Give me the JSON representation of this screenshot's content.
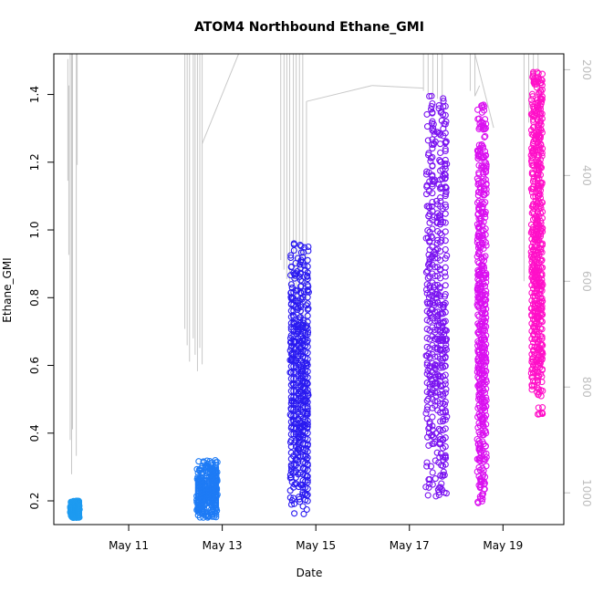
{
  "chart_data": {
    "type": "scatter",
    "title": "ATOM4 Northbound Ethane_GMI",
    "xlabel": "Date",
    "ylabel": "Ethane_GMI",
    "x_ticks": [
      "May 11",
      "May 13",
      "May 15",
      "May 17",
      "May 19"
    ],
    "x_tick_days": [
      11,
      13,
      15,
      17,
      19
    ],
    "xlim_days": [
      9.4,
      20.3
    ],
    "y_ticks": [
      "0.2",
      "0.4",
      "0.6",
      "0.8",
      "1.0",
      "1.2",
      "1.4"
    ],
    "ylim": [
      0.13,
      1.52
    ],
    "y2_ticks": [
      "200",
      "400",
      "600",
      "800",
      "1000"
    ],
    "y2_note": "secondary axis (pressure-like, inverted)",
    "y2lim": [
      1060,
      170
    ],
    "grid": false,
    "series": [
      {
        "color": "#1E9BF0",
        "day_range": [
          9.75,
          9.95
        ],
        "y_range": [
          0.15,
          0.2
        ]
      },
      {
        "color": "#1E7BF5",
        "day_range": [
          12.45,
          12.9
        ],
        "y_range": [
          0.15,
          0.32
        ]
      },
      {
        "color": "#2A1AF0",
        "day_range": [
          14.45,
          14.85
        ],
        "y_range": [
          0.16,
          0.98
        ]
      },
      {
        "color": "#7A12F0",
        "day_range": [
          17.35,
          17.8
        ],
        "y_range": [
          0.21,
          1.4
        ]
      },
      {
        "color": "#DA10F0",
        "day_range": [
          18.45,
          18.65
        ],
        "y_range": [
          0.19,
          1.37
        ]
      },
      {
        "color": "#FF10C8",
        "day_range": [
          19.6,
          19.85
        ],
        "y_range": [
          0.45,
          1.47
        ]
      }
    ],
    "profile_color": "#c8c8c8"
  }
}
